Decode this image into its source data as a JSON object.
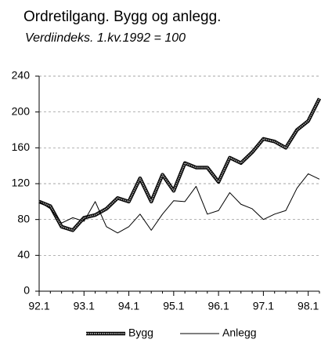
{
  "chart_data": {
    "type": "line",
    "title": "Ordretilgang. Bygg og anlegg.",
    "subtitle": "Verdiindeks. 1.kv.1992 = 100",
    "categories": [
      "92.1",
      null,
      null,
      null,
      "93.1",
      null,
      null,
      null,
      "94.1",
      null,
      null,
      null,
      "95.1",
      null,
      null,
      null,
      "96.1",
      null,
      null,
      null,
      "97.1",
      null,
      null,
      null,
      "98.1",
      null
    ],
    "series": [
      {
        "name": "Bygg",
        "color": "#999999",
        "values": [
          100,
          95,
          72,
          68,
          82,
          85,
          92,
          104,
          100,
          126,
          100,
          130,
          112,
          143,
          138,
          138,
          122,
          149,
          143,
          155,
          170,
          167,
          160,
          180,
          190,
          215
        ]
      },
      {
        "name": "Anlegg",
        "color": "#000000",
        "values": [
          100,
          92,
          76,
          82,
          78,
          100,
          72,
          65,
          72,
          86,
          68,
          86,
          101,
          100,
          117,
          86,
          90,
          110,
          97,
          92,
          80,
          86,
          90,
          115,
          131,
          125
        ]
      }
    ],
    "ylim": [
      0,
      240
    ],
    "yticks": [
      0,
      40,
      80,
      120,
      160,
      200,
      240
    ],
    "grid": true,
    "legend": "bottom"
  }
}
